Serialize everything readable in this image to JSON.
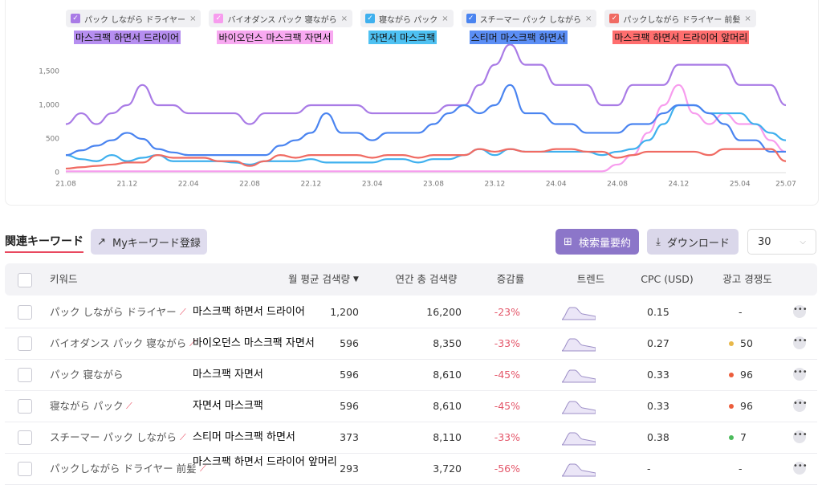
{
  "chart_data": {
    "type": "line",
    "categories": [
      "21.08",
      null,
      null,
      null,
      "21.12",
      null,
      null,
      null,
      "22.04",
      null,
      null,
      null,
      "22.08",
      null,
      null,
      null,
      "22.12",
      null,
      null,
      null,
      "23.04",
      null,
      null,
      null,
      "23.08",
      null,
      null,
      null,
      "23.12",
      null,
      null,
      null,
      "24.04",
      null,
      null,
      null,
      "24.08",
      null,
      null,
      null,
      "24.12",
      null,
      null,
      null,
      "25.04",
      null,
      null,
      "25.07"
    ],
    "series": [
      {
        "name": "パック しながら ドライヤー",
        "color": "#a97be6",
        "values": [
          720,
          880,
          720,
          880,
          1000,
          1300,
          1000,
          1000,
          880,
          880,
          880,
          880,
          720,
          880,
          880,
          880,
          1000,
          1000,
          1000,
          1000,
          880,
          880,
          880,
          880,
          880,
          1000,
          1000,
          1300,
          1600,
          1900,
          1600,
          1600,
          1300,
          1300,
          1300,
          1000,
          1000,
          1300,
          1300,
          1300,
          1600,
          1600,
          1600,
          1600,
          1300,
          1300,
          1300,
          1000
        ]
      },
      {
        "name": "バイオダンス パック 寝ながら",
        "color": "#f79cee",
        "values": [
          20,
          20,
          20,
          20,
          20,
          20,
          20,
          20,
          20,
          20,
          20,
          20,
          20,
          20,
          20,
          20,
          20,
          20,
          20,
          20,
          20,
          20,
          20,
          20,
          20,
          20,
          20,
          20,
          20,
          20,
          20,
          20,
          20,
          20,
          20,
          20,
          120,
          260,
          590,
          1000,
          1300,
          880,
          720,
          880,
          720,
          720,
          480,
          310
        ]
      },
      {
        "name": "寝ながら パック",
        "color": "#3fb0ee",
        "values": [
          260,
          200,
          170,
          260,
          170,
          220,
          260,
          170,
          170,
          170,
          170,
          150,
          120,
          170,
          170,
          170,
          200,
          150,
          150,
          150,
          150,
          200,
          200,
          150,
          200,
          200,
          260,
          350,
          260,
          350,
          310,
          310,
          310,
          310,
          310,
          260,
          310,
          350,
          480,
          720,
          1000,
          1000,
          880,
          880,
          880,
          720,
          590,
          480
        ]
      },
      {
        "name": "スチーマー パック しながら",
        "color": "#4a84f0",
        "values": [
          260,
          330,
          400,
          480,
          590,
          500,
          350,
          300,
          260,
          260,
          260,
          260,
          260,
          260,
          400,
          480,
          590,
          880,
          590,
          590,
          480,
          590,
          590,
          590,
          720,
          880,
          1000,
          880,
          1000,
          1300,
          880,
          880,
          720,
          720,
          590,
          590,
          590,
          720,
          720,
          880,
          1000,
          1000,
          880,
          720,
          480,
          480,
          310,
          310
        ]
      },
      {
        "name": "パックしながら ドライヤー 前髪",
        "color": "#f06b63",
        "values": [
          60,
          80,
          100,
          120,
          150,
          150,
          260,
          220,
          220,
          220,
          170,
          170,
          100,
          170,
          260,
          220,
          260,
          260,
          260,
          260,
          220,
          260,
          260,
          220,
          260,
          260,
          260,
          350,
          310,
          350,
          310,
          310,
          350,
          350,
          310,
          310,
          220,
          260,
          310,
          310,
          310,
          310,
          260,
          350,
          350,
          350,
          350,
          170
        ]
      }
    ],
    "annotations": [
      {
        "text": "마스크팩 하면서 드라이어",
        "color": "#b68ef0"
      },
      {
        "text": "바이오던스 마스크팩 자면서",
        "color": "#f8a9f1"
      },
      {
        "text": "자면서 마스크팩",
        "color": "#4ec1f2"
      },
      {
        "text": "스티머 마스크팩 하면서",
        "color": "#5b8ef5"
      },
      {
        "text": "마스크팩 하면서 드라이어 앞머리",
        "color": "#ff6e6e"
      }
    ],
    "ylim": [
      0,
      2000
    ],
    "yticks": [
      0,
      500,
      {
        "value": 1000,
        "label": "1,000"
      },
      {
        "value": 1500,
        "label": "1,500"
      }
    ],
    "grid": false
  },
  "toolbar": {
    "tab": "関連キーワード",
    "my_keyword": "Myキーワード登録",
    "summary": "検索量要約",
    "download": "ダウンロード",
    "page_size": "30"
  },
  "table": {
    "headers": [
      "키워드",
      "월 평균 검색량",
      "연간 총 검색량",
      "증감률",
      "트렌드",
      "CPC (USD)",
      "광고 경쟁도"
    ],
    "rows": [
      {
        "keyword": "パック しながら ドライヤー",
        "annotation": "마스크팩 하면서 드라이어",
        "monthly": "1,200",
        "yearly": "16,200",
        "change": "-23%",
        "cpc": "0.15",
        "competition": "-"
      },
      {
        "keyword": "バイオダンス パック 寝ながら",
        "annotation": "바이오던스 마스크팩 자면서",
        "monthly": "596",
        "yearly": "8,350",
        "change": "-33%",
        "cpc": "0.27",
        "competition": "50",
        "competition_color": "#e8b84a"
      },
      {
        "keyword": "パック 寝ながら",
        "annotation": "마스크팩 자면서",
        "monthly": "596",
        "yearly": "8,610",
        "change": "-45%",
        "cpc": "0.33",
        "competition": "96",
        "competition_color": "#ec5d3c"
      },
      {
        "keyword": "寝ながら パック",
        "annotation": "자면서 마스크팩",
        "monthly": "596",
        "yearly": "8,610",
        "change": "-45%",
        "cpc": "0.33",
        "competition": "96",
        "competition_color": "#ec5d3c"
      },
      {
        "keyword": "スチーマー パック しながら",
        "annotation": "스티머 마스크팩 하면서",
        "monthly": "373",
        "yearly": "8,110",
        "change": "-33%",
        "cpc": "0.38",
        "competition": "7",
        "competition_color": "#4cbb5c"
      },
      {
        "keyword": "パックしながら ドライヤー 前髪",
        "annotation": "마스크팩 하면서 드라이어 앞머리",
        "monthly": "293",
        "yearly": "3,720",
        "change": "-56%",
        "cpc": "-",
        "competition": "-"
      }
    ]
  }
}
